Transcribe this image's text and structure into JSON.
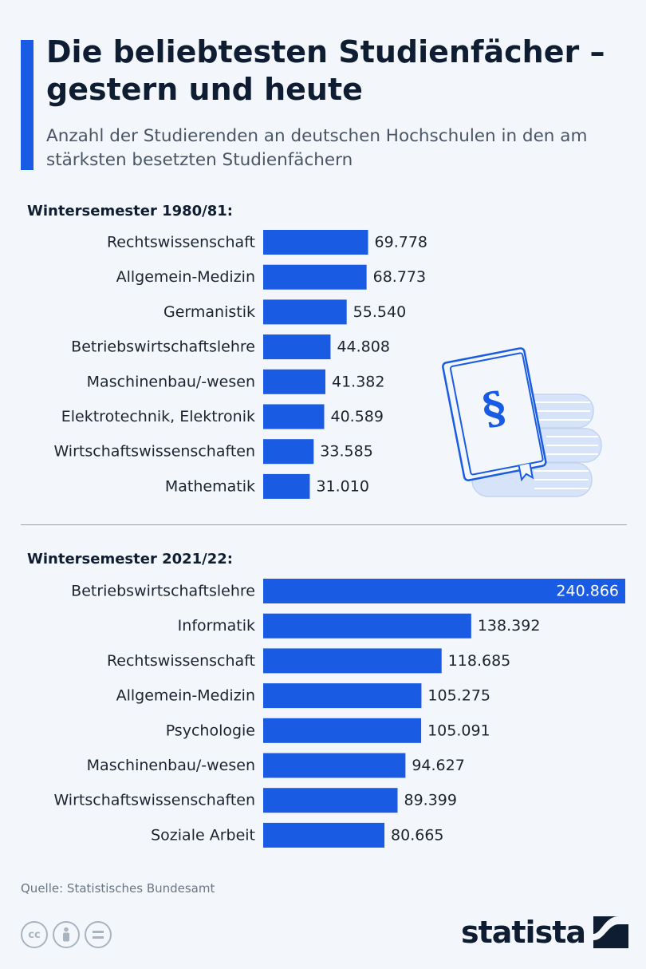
{
  "header": {
    "title": "Die beliebtesten Studienfächer – gestern und heute",
    "subtitle": "Anzahl der Studierenden an deutschen Hochschulen in den am stärksten besetzten Studienfächern"
  },
  "chart_data": [
    {
      "type": "bar",
      "orientation": "horizontal",
      "title": "Wintersemester 1980/81:",
      "categories": [
        "Rechtswissenschaft",
        "Allgemein-Medizin",
        "Germanistik",
        "Betriebswirtschaftslehre",
        "Maschinenbau/-wesen",
        "Elektrotechnik, Elektronik",
        "Wirtschaftswissenschaften",
        "Mathematik"
      ],
      "values": [
        69778,
        68773,
        55540,
        44808,
        41382,
        40589,
        33585,
        31010
      ],
      "value_labels": [
        "69.778",
        "68.773",
        "55.540",
        "44.808",
        "41.382",
        "40.589",
        "33.585",
        "31.010"
      ],
      "xlim": [
        0,
        240866
      ],
      "bar_color": "#1a5be3"
    },
    {
      "type": "bar",
      "orientation": "horizontal",
      "title": "Wintersemester 2021/22:",
      "categories": [
        "Betriebswirtschaftslehre",
        "Informatik",
        "Rechtswissenschaft",
        "Allgemein-Medizin",
        "Psychologie",
        "Maschinenbau/-wesen",
        "Wirtschaftswissenschaften",
        "Soziale Arbeit"
      ],
      "values": [
        240866,
        138392,
        118685,
        105275,
        105091,
        94627,
        89399,
        80665
      ],
      "value_labels": [
        "240.866",
        "138.392",
        "118.685",
        "105.275",
        "105.091",
        "94.627",
        "89.399",
        "80.665"
      ],
      "xlim": [
        0,
        240866
      ],
      "bar_color": "#1a5be3"
    }
  ],
  "footer": {
    "source": "Quelle: Statistisches Bundesamt",
    "brand": "statista",
    "license_icons": [
      "creative-commons-icon",
      "attribution-icon",
      "no-derivatives-icon"
    ]
  },
  "illustration": {
    "icon": "law-books-icon",
    "glyph": "§"
  }
}
